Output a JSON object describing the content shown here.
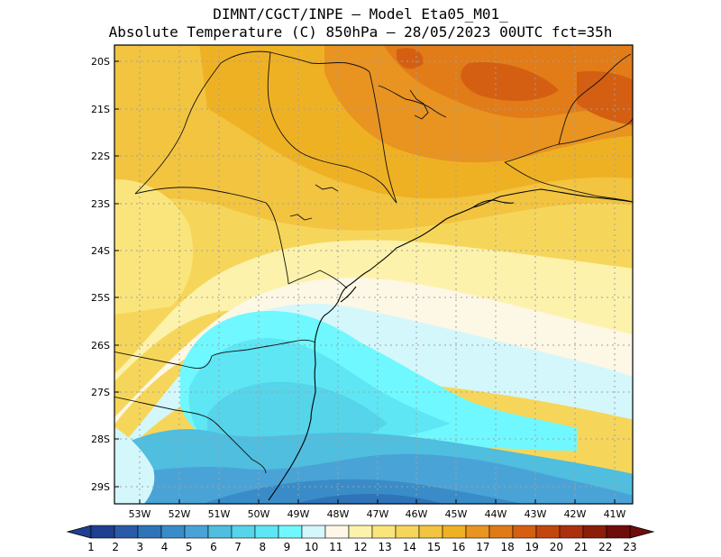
{
  "header": {
    "line1": "DIMNT/CGCT/INPE –  Model Eta05_M01_",
    "line2": "Absolute Temperature (C) 850hPa –  28/05/2023 00UTC fct=35h"
  },
  "map": {
    "lat_labels": [
      "20S",
      "21S",
      "22S",
      "23S",
      "24S",
      "25S",
      "26S",
      "27S",
      "28S",
      "29S"
    ],
    "lon_labels": [
      "53W",
      "52W",
      "51W",
      "50W",
      "49W",
      "48W",
      "47W",
      "46W",
      "45W",
      "44W",
      "43W",
      "42W",
      "41W"
    ],
    "lat_range": [
      -29.5,
      -19.8
    ],
    "lon_range": [
      -53.6,
      -40.6
    ]
  },
  "colorbar": {
    "labels": [
      "1",
      "2",
      "3",
      "4",
      "5",
      "6",
      "7",
      "8",
      "9",
      "10",
      "11",
      "12",
      "13",
      "14",
      "15",
      "16",
      "17",
      "18",
      "19",
      "20",
      "21",
      "22",
      "23"
    ],
    "colors": [
      "#1f3f8f",
      "#2a5aa8",
      "#2f74b8",
      "#3a8cc8",
      "#4aa3d6",
      "#4fbedf",
      "#55d4ea",
      "#5ee6f4",
      "#6ff8ff",
      "#d4f7fc",
      "#fdf7e6",
      "#fcf2ac",
      "#fae57c",
      "#f6d65a",
      "#f2c440",
      "#efb124",
      "#e99321",
      "#e07a17",
      "#d45f12",
      "#c4460f",
      "#ac300d",
      "#8c1d0b",
      "#6e0d0a"
    ]
  },
  "icons": {
    "colorbar_left": "arrow-left-triangle",
    "colorbar_right": "arrow-right-triangle"
  }
}
